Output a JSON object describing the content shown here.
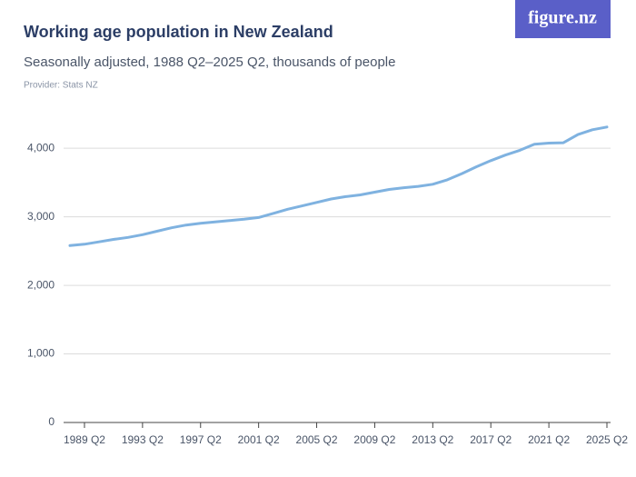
{
  "logo": "figure.nz",
  "chart_data": {
    "type": "line",
    "title": "Working age population in New Zealand",
    "subtitle": "Seasonally adjusted, 1988 Q2–2025 Q2, thousands of people",
    "provider": "Provider: Stats NZ",
    "categories": [
      null,
      "1989 Q2",
      null,
      null,
      null,
      "1993 Q2",
      null,
      null,
      null,
      "1997 Q2",
      null,
      null,
      null,
      "2001 Q2",
      null,
      null,
      null,
      "2005 Q2",
      null,
      null,
      null,
      "2009 Q2",
      null,
      null,
      null,
      "2013 Q2",
      null,
      null,
      null,
      "2017 Q2",
      null,
      null,
      null,
      "2021 Q2",
      null,
      null,
      null,
      "2025 Q2"
    ],
    "series": [
      {
        "name": "Working age population",
        "color": "#7fb2e0",
        "values": [
          2580,
          2600,
          2635,
          2670,
          2700,
          2740,
          2790,
          2840,
          2880,
          2905,
          2925,
          2945,
          2965,
          2990,
          3050,
          3110,
          3160,
          3210,
          3260,
          3295,
          3320,
          3360,
          3400,
          3425,
          3445,
          3475,
          3540,
          3630,
          3730,
          3820,
          3900,
          3970,
          4060,
          4075,
          4080,
          4200,
          4270,
          4310
        ]
      }
    ],
    "ylim": [
      0,
      4400
    ],
    "yticks": [
      0,
      {
        "value": 1000,
        "label": "1,000"
      },
      {
        "value": 2000,
        "label": "2,000"
      },
      {
        "value": 3000,
        "label": "3,000"
      },
      {
        "value": 4000,
        "label": "4,000"
      }
    ],
    "grid": true
  }
}
